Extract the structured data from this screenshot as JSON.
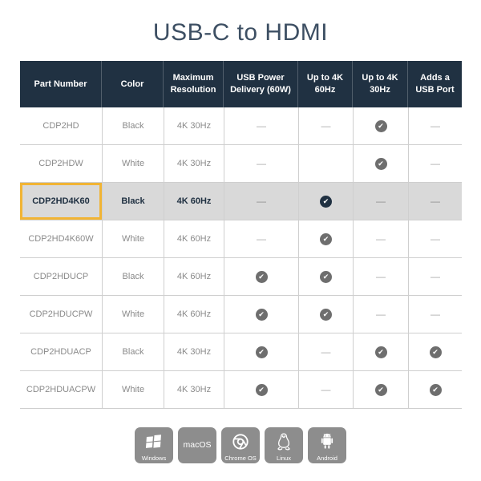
{
  "title": "USB-C to HDMI",
  "symbols": {
    "check": "✔",
    "dash": "—"
  },
  "colors": {
    "navy": "#203142",
    "titleColor": "#3d4f63",
    "bodyText": "#8a8a8a",
    "gridLine": "#cfcfcf",
    "highlightBg": "#d9d9d9",
    "highlightBorder": "#F1B434",
    "checkGray": "#6e6e6e",
    "dash": "#a9a9a9",
    "tileBg": "#8d8d8d"
  },
  "table": {
    "columns": [
      "Part Number",
      "Color",
      "Maximum Resolution",
      "USB Power Delivery (60W)",
      "Up to 4K 60Hz",
      "Up to 4K 30Hz",
      "Adds a USB Port"
    ],
    "rows": [
      {
        "part": "CDP2HD",
        "color": "Black",
        "resolution": "4K 30Hz",
        "power": "dash",
        "k60": "dash",
        "k30": "check",
        "usb": "dash",
        "highlight": false
      },
      {
        "part": "CDP2HDW",
        "color": "White",
        "resolution": "4K 30Hz",
        "power": "dash",
        "k60": "blank",
        "k30": "check",
        "usb": "dash",
        "highlight": false
      },
      {
        "part": "CDP2HD4K60",
        "color": "Black",
        "resolution": "4K 60Hz",
        "power": "dash",
        "k60": "check",
        "k30": "dash",
        "usb": "dash",
        "highlight": true
      },
      {
        "part": "CDP2HD4K60W",
        "color": "White",
        "resolution": "4K 60Hz",
        "power": "dash",
        "k60": "check",
        "k30": "dash",
        "usb": "dash",
        "highlight": false
      },
      {
        "part": "CDP2HDUCP",
        "color": "Black",
        "resolution": "4K 60Hz",
        "power": "check",
        "k60": "check",
        "k30": "dash",
        "usb": "dash",
        "highlight": false
      },
      {
        "part": "CDP2HDUCPW",
        "color": "White",
        "resolution": "4K 60Hz",
        "power": "check",
        "k60": "check",
        "k30": "dash",
        "usb": "dash",
        "highlight": false
      },
      {
        "part": "CDP2HDUACP",
        "color": "Black",
        "resolution": "4K 30Hz",
        "power": "check",
        "k60": "dash",
        "k30": "check",
        "usb": "check",
        "highlight": false
      },
      {
        "part": "CDP2HDUACPW",
        "color": "White",
        "resolution": "4K 30Hz",
        "power": "check",
        "k60": "dash",
        "k30": "check",
        "usb": "check",
        "highlight": false
      }
    ]
  },
  "os_badges": [
    {
      "label": "Windows",
      "icon": "windows-icon"
    },
    {
      "label": "macOS",
      "icon": "none"
    },
    {
      "label": "Chrome OS",
      "icon": "chrome-icon"
    },
    {
      "label": "Linux",
      "icon": "linux-icon"
    },
    {
      "label": "Android",
      "icon": "android-icon"
    }
  ]
}
